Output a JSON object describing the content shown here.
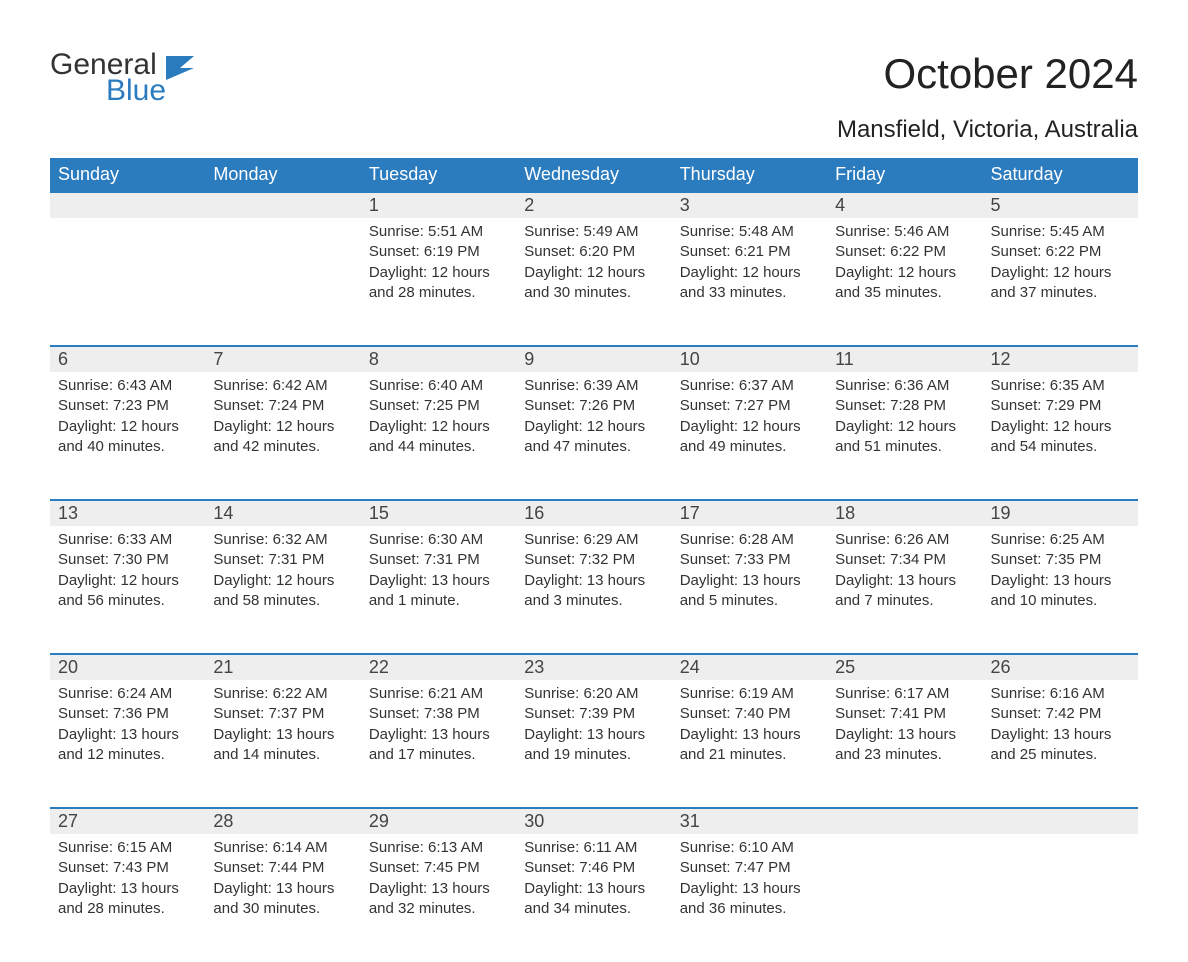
{
  "logo": {
    "word1": "General",
    "word2": "Blue",
    "icon_color": "#2b7bbf",
    "text_color": "#333333"
  },
  "title": "October 2024",
  "location": "Mansfield, Victoria, Australia",
  "colors": {
    "header_bg": "#2b7bbf",
    "header_text": "#ffffff",
    "daynum_bg": "#eeeeee",
    "row_divider": "#2b7bbf",
    "body_text": "#333333",
    "page_bg": "#ffffff"
  },
  "fonts": {
    "title_size_pt": 32,
    "location_size_pt": 18,
    "header_size_pt": 14,
    "body_size_pt": 11
  },
  "calendar": {
    "type": "table",
    "columns": [
      "Sunday",
      "Monday",
      "Tuesday",
      "Wednesday",
      "Thursday",
      "Friday",
      "Saturday"
    ],
    "weeks": [
      [
        null,
        null,
        {
          "day": "1",
          "sunrise": "Sunrise: 5:51 AM",
          "sunset": "Sunset: 6:19 PM",
          "daylight1": "Daylight: 12 hours",
          "daylight2": "and 28 minutes."
        },
        {
          "day": "2",
          "sunrise": "Sunrise: 5:49 AM",
          "sunset": "Sunset: 6:20 PM",
          "daylight1": "Daylight: 12 hours",
          "daylight2": "and 30 minutes."
        },
        {
          "day": "3",
          "sunrise": "Sunrise: 5:48 AM",
          "sunset": "Sunset: 6:21 PM",
          "daylight1": "Daylight: 12 hours",
          "daylight2": "and 33 minutes."
        },
        {
          "day": "4",
          "sunrise": "Sunrise: 5:46 AM",
          "sunset": "Sunset: 6:22 PM",
          "daylight1": "Daylight: 12 hours",
          "daylight2": "and 35 minutes."
        },
        {
          "day": "5",
          "sunrise": "Sunrise: 5:45 AM",
          "sunset": "Sunset: 6:22 PM",
          "daylight1": "Daylight: 12 hours",
          "daylight2": "and 37 minutes."
        }
      ],
      [
        {
          "day": "6",
          "sunrise": "Sunrise: 6:43 AM",
          "sunset": "Sunset: 7:23 PM",
          "daylight1": "Daylight: 12 hours",
          "daylight2": "and 40 minutes."
        },
        {
          "day": "7",
          "sunrise": "Sunrise: 6:42 AM",
          "sunset": "Sunset: 7:24 PM",
          "daylight1": "Daylight: 12 hours",
          "daylight2": "and 42 minutes."
        },
        {
          "day": "8",
          "sunrise": "Sunrise: 6:40 AM",
          "sunset": "Sunset: 7:25 PM",
          "daylight1": "Daylight: 12 hours",
          "daylight2": "and 44 minutes."
        },
        {
          "day": "9",
          "sunrise": "Sunrise: 6:39 AM",
          "sunset": "Sunset: 7:26 PM",
          "daylight1": "Daylight: 12 hours",
          "daylight2": "and 47 minutes."
        },
        {
          "day": "10",
          "sunrise": "Sunrise: 6:37 AM",
          "sunset": "Sunset: 7:27 PM",
          "daylight1": "Daylight: 12 hours",
          "daylight2": "and 49 minutes."
        },
        {
          "day": "11",
          "sunrise": "Sunrise: 6:36 AM",
          "sunset": "Sunset: 7:28 PM",
          "daylight1": "Daylight: 12 hours",
          "daylight2": "and 51 minutes."
        },
        {
          "day": "12",
          "sunrise": "Sunrise: 6:35 AM",
          "sunset": "Sunset: 7:29 PM",
          "daylight1": "Daylight: 12 hours",
          "daylight2": "and 54 minutes."
        }
      ],
      [
        {
          "day": "13",
          "sunrise": "Sunrise: 6:33 AM",
          "sunset": "Sunset: 7:30 PM",
          "daylight1": "Daylight: 12 hours",
          "daylight2": "and 56 minutes."
        },
        {
          "day": "14",
          "sunrise": "Sunrise: 6:32 AM",
          "sunset": "Sunset: 7:31 PM",
          "daylight1": "Daylight: 12 hours",
          "daylight2": "and 58 minutes."
        },
        {
          "day": "15",
          "sunrise": "Sunrise: 6:30 AM",
          "sunset": "Sunset: 7:31 PM",
          "daylight1": "Daylight: 13 hours",
          "daylight2": "and 1 minute."
        },
        {
          "day": "16",
          "sunrise": "Sunrise: 6:29 AM",
          "sunset": "Sunset: 7:32 PM",
          "daylight1": "Daylight: 13 hours",
          "daylight2": "and 3 minutes."
        },
        {
          "day": "17",
          "sunrise": "Sunrise: 6:28 AM",
          "sunset": "Sunset: 7:33 PM",
          "daylight1": "Daylight: 13 hours",
          "daylight2": "and 5 minutes."
        },
        {
          "day": "18",
          "sunrise": "Sunrise: 6:26 AM",
          "sunset": "Sunset: 7:34 PM",
          "daylight1": "Daylight: 13 hours",
          "daylight2": "and 7 minutes."
        },
        {
          "day": "19",
          "sunrise": "Sunrise: 6:25 AM",
          "sunset": "Sunset: 7:35 PM",
          "daylight1": "Daylight: 13 hours",
          "daylight2": "and 10 minutes."
        }
      ],
      [
        {
          "day": "20",
          "sunrise": "Sunrise: 6:24 AM",
          "sunset": "Sunset: 7:36 PM",
          "daylight1": "Daylight: 13 hours",
          "daylight2": "and 12 minutes."
        },
        {
          "day": "21",
          "sunrise": "Sunrise: 6:22 AM",
          "sunset": "Sunset: 7:37 PM",
          "daylight1": "Daylight: 13 hours",
          "daylight2": "and 14 minutes."
        },
        {
          "day": "22",
          "sunrise": "Sunrise: 6:21 AM",
          "sunset": "Sunset: 7:38 PM",
          "daylight1": "Daylight: 13 hours",
          "daylight2": "and 17 minutes."
        },
        {
          "day": "23",
          "sunrise": "Sunrise: 6:20 AM",
          "sunset": "Sunset: 7:39 PM",
          "daylight1": "Daylight: 13 hours",
          "daylight2": "and 19 minutes."
        },
        {
          "day": "24",
          "sunrise": "Sunrise: 6:19 AM",
          "sunset": "Sunset: 7:40 PM",
          "daylight1": "Daylight: 13 hours",
          "daylight2": "and 21 minutes."
        },
        {
          "day": "25",
          "sunrise": "Sunrise: 6:17 AM",
          "sunset": "Sunset: 7:41 PM",
          "daylight1": "Daylight: 13 hours",
          "daylight2": "and 23 minutes."
        },
        {
          "day": "26",
          "sunrise": "Sunrise: 6:16 AM",
          "sunset": "Sunset: 7:42 PM",
          "daylight1": "Daylight: 13 hours",
          "daylight2": "and 25 minutes."
        }
      ],
      [
        {
          "day": "27",
          "sunrise": "Sunrise: 6:15 AM",
          "sunset": "Sunset: 7:43 PM",
          "daylight1": "Daylight: 13 hours",
          "daylight2": "and 28 minutes."
        },
        {
          "day": "28",
          "sunrise": "Sunrise: 6:14 AM",
          "sunset": "Sunset: 7:44 PM",
          "daylight1": "Daylight: 13 hours",
          "daylight2": "and 30 minutes."
        },
        {
          "day": "29",
          "sunrise": "Sunrise: 6:13 AM",
          "sunset": "Sunset: 7:45 PM",
          "daylight1": "Daylight: 13 hours",
          "daylight2": "and 32 minutes."
        },
        {
          "day": "30",
          "sunrise": "Sunrise: 6:11 AM",
          "sunset": "Sunset: 7:46 PM",
          "daylight1": "Daylight: 13 hours",
          "daylight2": "and 34 minutes."
        },
        {
          "day": "31",
          "sunrise": "Sunrise: 6:10 AM",
          "sunset": "Sunset: 7:47 PM",
          "daylight1": "Daylight: 13 hours",
          "daylight2": "and 36 minutes."
        },
        null,
        null
      ]
    ]
  }
}
